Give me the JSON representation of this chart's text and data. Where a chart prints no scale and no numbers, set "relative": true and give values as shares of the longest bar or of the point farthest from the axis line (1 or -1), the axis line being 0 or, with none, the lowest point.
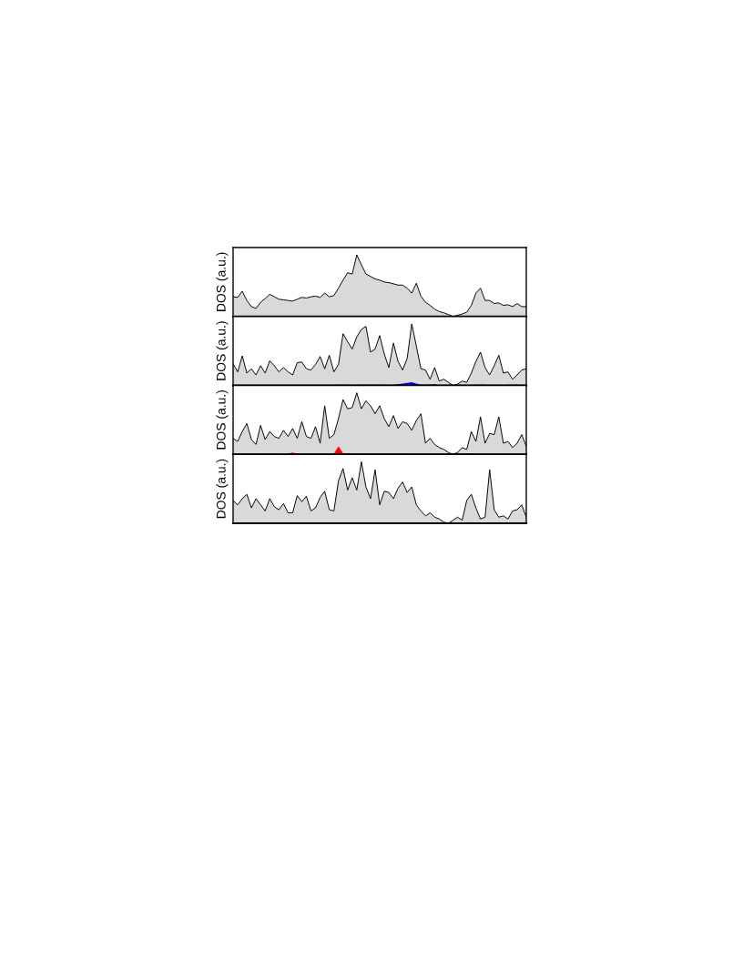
{
  "chart_data": [
    {
      "type": "area",
      "relative": true,
      "ylabel": "DOS (a.u.)",
      "categories": [
        null,
        null,
        null,
        null,
        null,
        null,
        null,
        null,
        null,
        null,
        null,
        null,
        null,
        null,
        null,
        null,
        null,
        null,
        null,
        null,
        null,
        null,
        null,
        null,
        null,
        null,
        null,
        null,
        null,
        null,
        null,
        null,
        null,
        null,
        null,
        null,
        null,
        null,
        null,
        null,
        null,
        null,
        null,
        null,
        null,
        null,
        null,
        null,
        null,
        null,
        null,
        null,
        null,
        null,
        null,
        null,
        null,
        null,
        null,
        null,
        null,
        null,
        null,
        null,
        null
      ],
      "series": [
        {
          "color": "#d9d9d9",
          "values": [
            0.32,
            0.31,
            0.41,
            0.26,
            0.16,
            0.13,
            0.23,
            0.29,
            0.36,
            0.32,
            0.28,
            0.27,
            0.26,
            0.25,
            0.28,
            0.31,
            0.3,
            0.32,
            0.33,
            0.31,
            0.38,
            0.32,
            0.34,
            0.46,
            0.59,
            0.71,
            0.69,
            1,
            0.84,
            0.69,
            0.65,
            0.61,
            0.59,
            0.56,
            0.55,
            0.53,
            0.51,
            0.51,
            0.46,
            0.38,
            0.54,
            0.33,
            0.23,
            0.18,
            0.12,
            0.08,
            0.06,
            0.03,
            0,
            0.02,
            0.04,
            0.07,
            0.18,
            0.38,
            0.46,
            0.26,
            0.26,
            0.21,
            0.22,
            0.18,
            0.19,
            0.16,
            0.21,
            0.16,
            0.16
          ]
        }
      ]
    },
    {
      "type": "area",
      "relative": true,
      "ylabel": "DOS (a.u.)",
      "categories": [
        null,
        null,
        null,
        null,
        null,
        null,
        null,
        null,
        null,
        null,
        null,
        null,
        null,
        null,
        null,
        null,
        null,
        null,
        null,
        null,
        null,
        null,
        null,
        null,
        null,
        null,
        null,
        null,
        null,
        null,
        null,
        null,
        null,
        null,
        null,
        null,
        null,
        null,
        null,
        null,
        null,
        null,
        null,
        null,
        null,
        null,
        null,
        null,
        null,
        null,
        null,
        null,
        null,
        null,
        null,
        null,
        null,
        null,
        null,
        null,
        null,
        null,
        null,
        null,
        null
      ],
      "series": [
        {
          "color": "#d9d9d9",
          "values": [
            0.35,
            0.22,
            0.48,
            0.2,
            0.27,
            0.17,
            0.32,
            0.2,
            0.4,
            0.32,
            0.22,
            0.29,
            0.22,
            0.17,
            0.37,
            0.38,
            0.27,
            0.25,
            0.34,
            0.47,
            0.27,
            0.49,
            0.22,
            0.34,
            0.84,
            0.71,
            0.59,
            0.79,
            0.91,
            0.96,
            0.54,
            0.59,
            0.81,
            0.51,
            0.29,
            0.69,
            0.39,
            0.25,
            0.44,
            1,
            0.64,
            0.27,
            0.25,
            0.1,
            0.29,
            0.07,
            0.1,
            0.05,
            0,
            0.02,
            0.07,
            0.05,
            0.2,
            0.39,
            0.54,
            0.29,
            0.17,
            0.32,
            0.49,
            0.2,
            0.22,
            0.1,
            0.17,
            0.25,
            0.27
          ]
        },
        {
          "color": "#0000ff",
          "values": [
            0,
            0,
            0,
            0,
            0,
            0,
            0,
            0,
            0,
            0,
            0,
            0,
            0,
            0,
            0,
            0,
            0.01,
            0,
            0,
            0,
            0,
            0,
            0.01,
            0.01,
            0.01,
            0.01,
            0,
            0.01,
            0.01,
            0.01,
            0.01,
            0.01,
            0.01,
            0.01,
            0,
            0.01,
            0.02,
            0.03,
            0.04,
            0.05,
            0.03,
            0.01,
            0.01,
            0.01,
            0.02,
            0,
            0,
            0,
            0,
            0,
            0,
            0,
            0,
            0.01,
            0.01,
            0.01,
            0,
            0,
            0.01,
            0,
            0.01,
            0.01,
            0.01,
            0,
            0.01
          ]
        }
      ]
    },
    {
      "type": "area",
      "relative": true,
      "ylabel": "DOS (a.u.)",
      "categories": [
        null,
        null,
        null,
        null,
        null,
        null,
        null,
        null,
        null,
        null,
        null,
        null,
        null,
        null,
        null,
        null,
        null,
        null,
        null,
        null,
        null,
        null,
        null,
        null,
        null,
        null,
        null,
        null,
        null,
        null,
        null,
        null,
        null,
        null,
        null,
        null,
        null,
        null,
        null,
        null,
        null,
        null,
        null,
        null,
        null,
        null,
        null,
        null,
        null,
        null,
        null,
        null,
        null,
        null,
        null,
        null,
        null,
        null,
        null,
        null,
        null,
        null,
        null,
        null,
        null
      ],
      "series": [
        {
          "color": "#d9d9d9",
          "values": [
            0.26,
            0.21,
            0.37,
            0.5,
            0.24,
            0.16,
            0.47,
            0.24,
            0.37,
            0.29,
            0.26,
            0.39,
            0.29,
            0.42,
            0.26,
            0.53,
            0.29,
            0.26,
            0.45,
            0.18,
            0.79,
            0.26,
            0.32,
            0.58,
            0.89,
            0.74,
            0.76,
            1,
            0.74,
            0.87,
            0.79,
            0.66,
            0.79,
            0.58,
            0.45,
            0.63,
            0.42,
            0.53,
            0.5,
            0.39,
            0.55,
            0.66,
            0.18,
            0.26,
            0.16,
            0.11,
            0.08,
            0.03,
            0,
            0.03,
            0.11,
            0.08,
            0.37,
            0.21,
            0.61,
            0.18,
            0.34,
            0.32,
            0.61,
            0.18,
            0.21,
            0.11,
            0.18,
            0.32,
            0.13
          ]
        },
        {
          "color": "#ff0000",
          "values": [
            0,
            0,
            0.01,
            0.01,
            0,
            0.01,
            0.01,
            0,
            0.01,
            0,
            0,
            0,
            0.01,
            0.03,
            0.01,
            0,
            0.01,
            0,
            0.01,
            0,
            0.01,
            0,
            0.01,
            0.13,
            0.02,
            0.01,
            0.02,
            0,
            0.01,
            0.01,
            0,
            0.01,
            0.01,
            0,
            0.01,
            0,
            0.01,
            0.01,
            0.01,
            0,
            0,
            0,
            0,
            0,
            0,
            0,
            0,
            0,
            0,
            0,
            0,
            0.02,
            0.01,
            0,
            0,
            0,
            0,
            0,
            0,
            0,
            0,
            0,
            0,
            0,
            0
          ]
        }
      ]
    },
    {
      "type": "area",
      "relative": true,
      "ylabel": "DOS (a.u.)",
      "categories": [
        null,
        null,
        null,
        null,
        null,
        null,
        null,
        null,
        null,
        null,
        null,
        null,
        null,
        null,
        null,
        null,
        null,
        null,
        null,
        null,
        null,
        null,
        null,
        null,
        null,
        null,
        null,
        null,
        null,
        null,
        null,
        null,
        null,
        null,
        null,
        null,
        null,
        null,
        null,
        null,
        null,
        null,
        null,
        null,
        null,
        null,
        null,
        null,
        null,
        null,
        null,
        null,
        null,
        null,
        null,
        null,
        null,
        null,
        null,
        null,
        null,
        null,
        null,
        null,
        null
      ],
      "series": [
        {
          "color": "#d9d9d9",
          "values": [
            0.37,
            0.3,
            0.4,
            0.47,
            0.25,
            0.4,
            0.3,
            0.2,
            0.4,
            0.27,
            0.22,
            0.32,
            0.17,
            0.17,
            0.45,
            0.35,
            0.44,
            0.2,
            0.25,
            0.42,
            0.52,
            0.22,
            0.2,
            0.69,
            0.89,
            0.54,
            0.74,
            0.54,
            1,
            0.59,
            0.4,
            0.87,
            0.3,
            0.52,
            0.5,
            0.4,
            0.57,
            0.67,
            0.5,
            0.59,
            0.3,
            0.2,
            0.12,
            0.17,
            0.1,
            0.07,
            0.02,
            0,
            0.05,
            0.1,
            0.05,
            0.37,
            0.47,
            0.25,
            0.07,
            0.1,
            0.87,
            0.22,
            0.1,
            0.12,
            0.07,
            0.2,
            0.22,
            0.3,
            0.1
          ]
        },
        {
          "color": "#ffa500",
          "values": [
            0,
            0,
            0,
            0,
            0,
            0,
            0,
            0,
            0,
            0,
            0,
            0,
            0,
            0,
            0,
            0,
            0,
            0,
            0,
            0,
            0,
            0,
            0,
            0.01,
            0.02,
            0.01,
            0,
            0,
            0.01,
            0.01,
            0,
            0,
            0,
            0,
            0,
            0,
            0,
            0,
            0,
            0,
            0,
            0,
            0,
            0,
            0,
            0,
            0,
            0,
            0,
            0,
            0,
            0.01,
            0.02,
            0.01,
            0,
            0,
            0,
            0,
            0,
            0,
            0,
            0,
            0,
            0,
            0
          ]
        }
      ]
    }
  ]
}
